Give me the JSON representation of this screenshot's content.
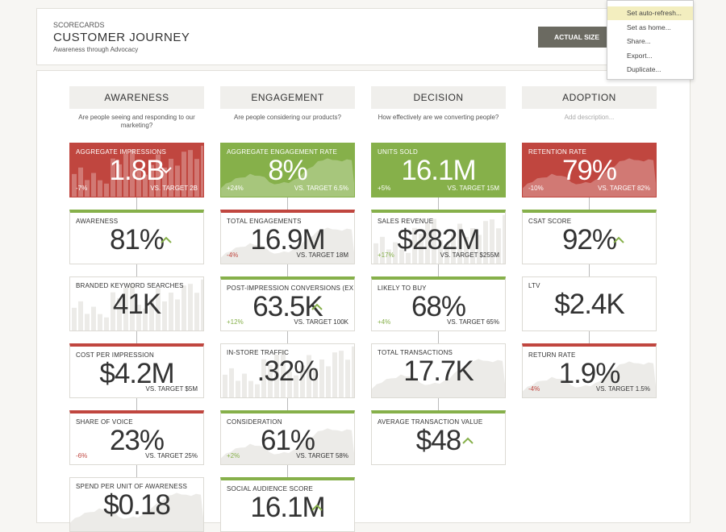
{
  "header": {
    "section": "SCORECARDS",
    "title": "CUSTOMER JOURNEY",
    "subtitle": "Awareness through Advocacy",
    "button": "ACTUAL SIZE"
  },
  "menu": {
    "items": [
      "Set auto-refresh...",
      "Set as home...",
      "Share...",
      "Export...",
      "Duplicate..."
    ],
    "highlight": 0
  },
  "columns": [
    {
      "title": "AWARENESS",
      "description": "Are people seeing and responding to our marketing?",
      "cards": [
        {
          "title": "AGGREGATE IMPRESSIONS",
          "value": "1.8B",
          "change": "-7%",
          "target": "VS. TARGET 2B",
          "fill": "#c0463f",
          "spark": "bars",
          "trend": "down"
        },
        {
          "title": "AWARENESS",
          "value": "81%",
          "border": "#86b04a",
          "trend": "up"
        },
        {
          "title": "BRANDED KEYWORD SEARCHES",
          "value": "41K",
          "spark": "bars"
        },
        {
          "title": "COST PER IMPRESSION",
          "value": "$4.2M",
          "target": "VS. TARGET $5M",
          "border": "#c0463f"
        },
        {
          "title": "SHARE OF VOICE",
          "value": "23%",
          "change": "-6%",
          "target": "VS. TARGET 25%",
          "border": "#c0463f"
        },
        {
          "title": "SPEND PER UNIT OF AWARENESS",
          "value": "$0.18",
          "spark": "area"
        }
      ]
    },
    {
      "title": "ENGAGEMENT",
      "description": "Are people considering our products?",
      "cards": [
        {
          "title": "AGGREGATE ENGAGEMENT RATE",
          "value": "8%",
          "change": "+24%",
          "target": "VS. TARGET 6.5%",
          "fill": "#86b04a",
          "spark": "area"
        },
        {
          "title": "TOTAL ENGAGEMENTS",
          "value": "16.9M",
          "change": "-4%",
          "target": "VS. TARGET 18M",
          "border": "#c0463f",
          "spark": "area"
        },
        {
          "title": "POST-IMPRESSION CONVERSIONS (EXPOS...",
          "value": "63.5K",
          "change": "+12%",
          "target": "VS. TARGET 100K",
          "border": "#86b04a",
          "trend": "up"
        },
        {
          "title": "IN-STORE TRAFFIC",
          "value": ".32%",
          "spark": "bars"
        },
        {
          "title": "CONSIDERATION",
          "value": "61%",
          "change": "+2%",
          "target": "VS. TARGET 58%",
          "border": "#86b04a",
          "spark": "area"
        },
        {
          "title": "SOCIAL AUDIENCE SCORE",
          "value": "16.1M",
          "border": "#86b04a",
          "trend": "up"
        }
      ]
    },
    {
      "title": "DECISION",
      "description": "How effectively are we converting people?",
      "cards": [
        {
          "title": "UNITS SOLD",
          "value": "16.1M",
          "change": "+5%",
          "target": "VS. TARGET 15M",
          "fill": "#86b04a"
        },
        {
          "title": "SALES REVENUE",
          "value": "$282M",
          "change": "+17%",
          "target": "VS. TARGET $255M",
          "border": "#86b04a",
          "spark": "bars"
        },
        {
          "title": "LIKELY TO BUY",
          "value": "68%",
          "change": "+4%",
          "target": "VS. TARGET 65%",
          "border": "#86b04a"
        },
        {
          "title": "TOTAL TRANSACTIONS",
          "value": "17.7K",
          "spark": "area"
        },
        {
          "title": "AVERAGE TRANSACTION VALUE",
          "value": "$48",
          "border": "#86b04a",
          "trend": "up"
        }
      ]
    },
    {
      "title": "ADOPTION",
      "description": "Add description...",
      "placeholder": true,
      "cards": [
        {
          "title": "RETENTION RATE",
          "value": "79%",
          "change": "-10%",
          "target": "VS. TARGET 82%",
          "fill": "#c0463f",
          "spark": "area"
        },
        {
          "title": "CSAT SCORE",
          "value": "92%",
          "border": "#86b04a",
          "trend": "up"
        },
        {
          "title": "LTV",
          "value": "$2.4K"
        },
        {
          "title": "RETURN RATE",
          "value": "1.9%",
          "change": "-4%",
          "target": "VS. TARGET 1.5%",
          "border": "#c0463f",
          "spark": "area"
        }
      ]
    }
  ]
}
